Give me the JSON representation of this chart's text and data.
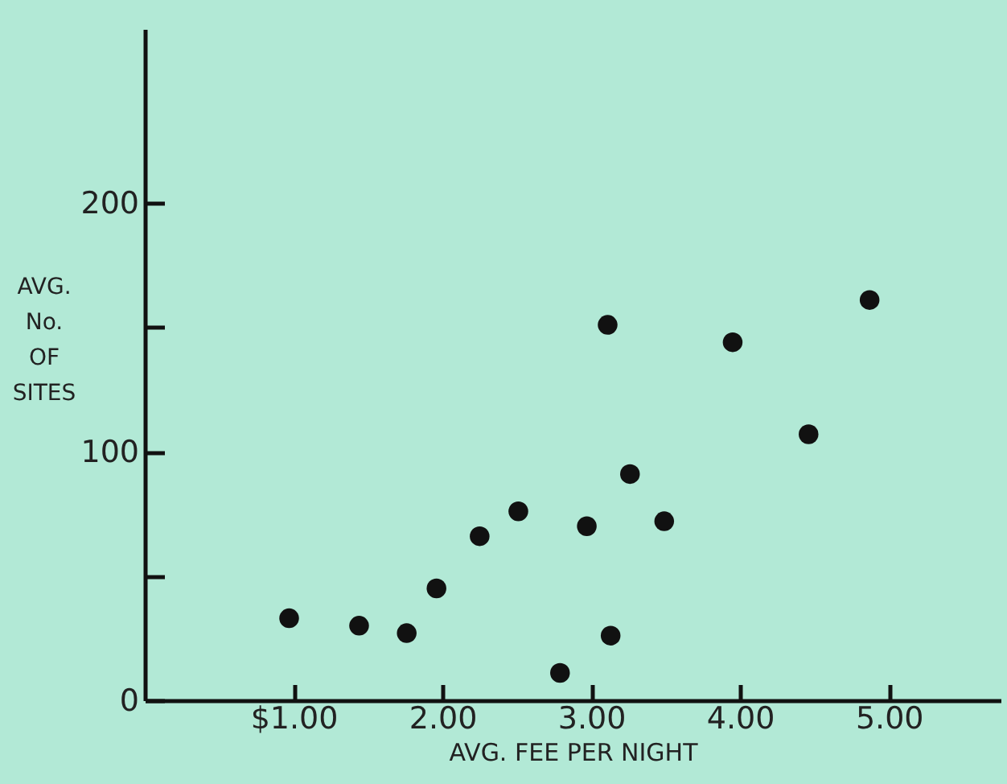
{
  "chart_data": {
    "type": "scatter",
    "xlabel": "AVG. FEE PER NIGHT",
    "ylabel": "AVG. No. OF SITES",
    "xlim": [
      0,
      5.75
    ],
    "ylim": [
      0,
      270
    ],
    "xticks": [
      {
        "value": 1,
        "label": "$1.00"
      },
      {
        "value": 2,
        "label": "2.00"
      },
      {
        "value": 3,
        "label": "3.00"
      },
      {
        "value": 4,
        "label": "4.00"
      },
      {
        "value": 5,
        "label": "5.00"
      }
    ],
    "yticks": [
      0,
      {
        "value": 50,
        "label": null
      },
      100,
      {
        "value": 150,
        "label": null
      },
      200
    ],
    "x": [
      0.97,
      1.44,
      1.76,
      1.96,
      2.25,
      2.51,
      2.79,
      2.97,
      3.13,
      3.49,
      3.11,
      3.26,
      3.95,
      4.46,
      4.87
    ],
    "series": [
      {
        "color": "#111111",
        "values": [
          33,
          30,
          27,
          45,
          66,
          76,
          11,
          70,
          26,
          72,
          151,
          91,
          144,
          107,
          161
        ]
      }
    ],
    "grid": false,
    "marker": "circle"
  }
}
